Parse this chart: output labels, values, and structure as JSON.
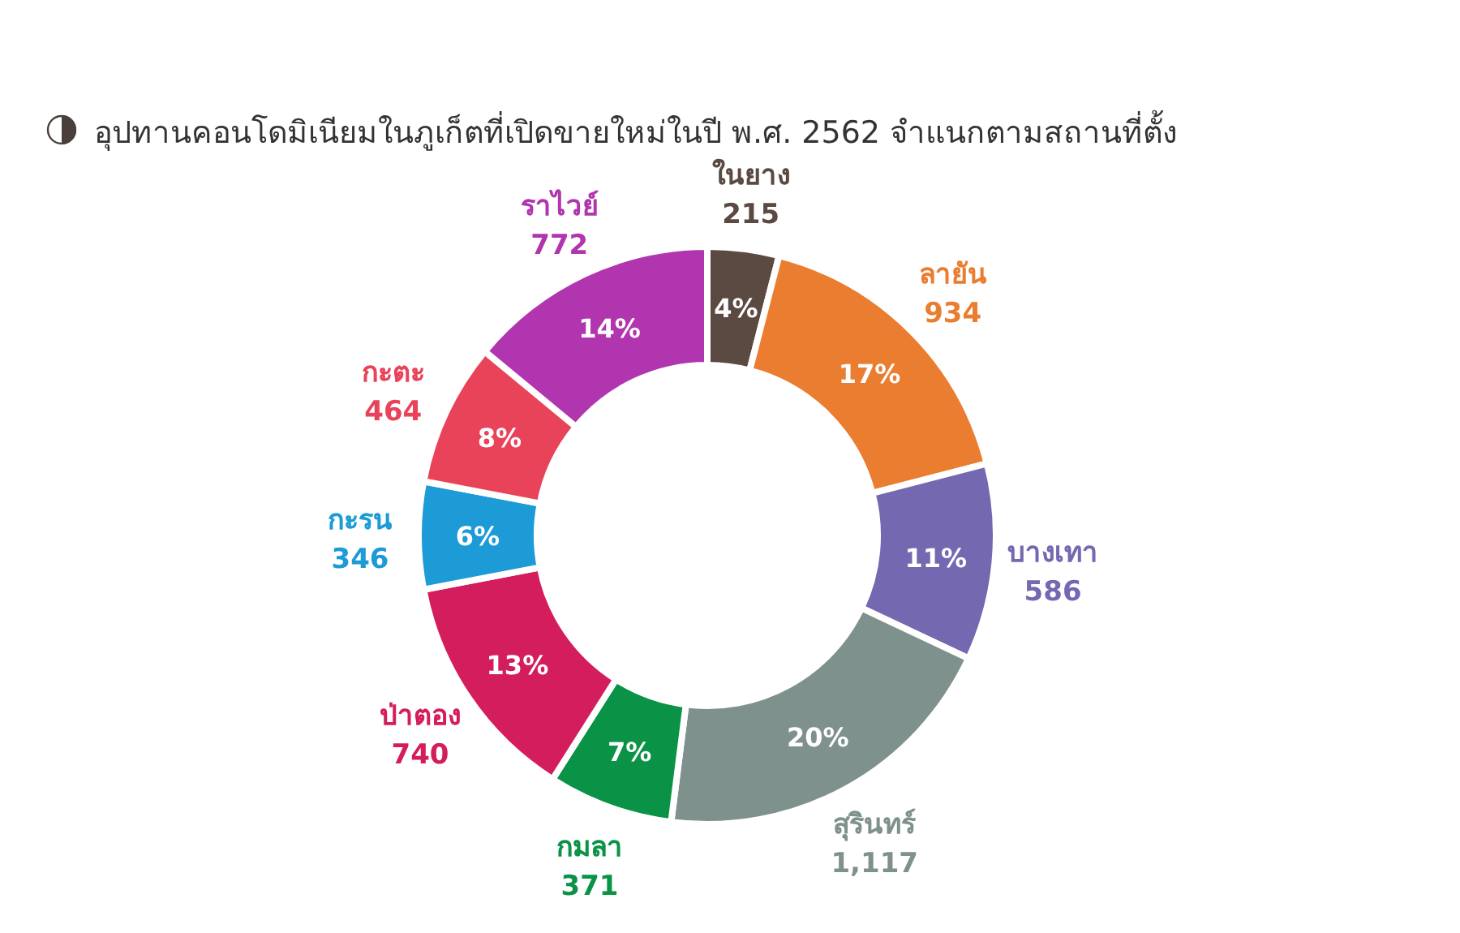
{
  "chart_data": {
    "type": "donut",
    "title": "อุปทานคอนโดมิเนียมในภูเก็ตที่เปิดขายใหม่ในปี พ.ศ. 2562 จำแนกตามสถานที่ตั้ง",
    "categories": [
      "ในยาง",
      "ลายัน",
      "บางเทา",
      "สุรินทร์",
      "กมลา",
      "ป่าตอง",
      "กะรน",
      "กะตะ",
      "ราไวย์"
    ],
    "values": [
      4,
      17,
      11,
      20,
      7,
      13,
      6,
      8,
      14
    ],
    "value_labels": [
      "4%",
      "17%",
      "11%",
      "20%",
      "7%",
      "13%",
      "6%",
      "8%",
      "14%"
    ],
    "annotations": [
      "215",
      "934",
      "586",
      "1,117",
      "371",
      "740",
      "346",
      "464",
      "772"
    ],
    "colors": [
      "#5b4a42",
      "#ea7d30",
      "#7468b1",
      "#7f918d",
      "#0a9246",
      "#d41d5c",
      "#1c9bd7",
      "#e9435a",
      "#b035ae"
    ]
  }
}
